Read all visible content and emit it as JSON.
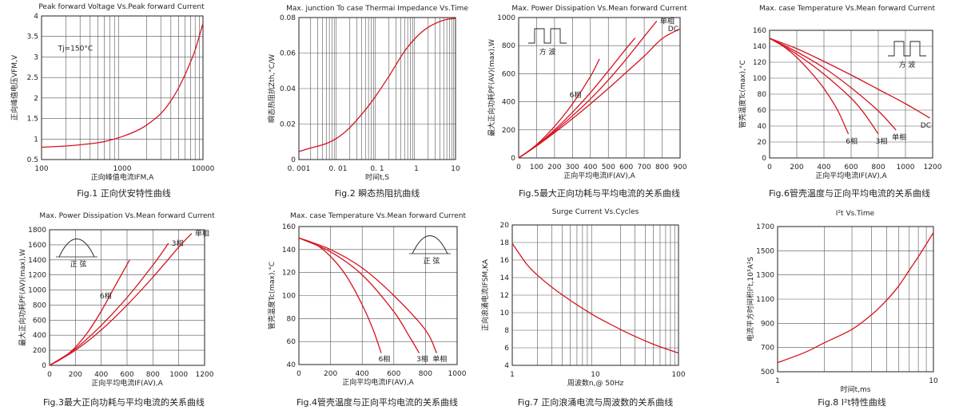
{
  "colors": {
    "curve": "#d6131f",
    "axis": "#222222",
    "grid": "#555555"
  },
  "chart_data": [
    {
      "type": "line",
      "title": "Peak forward Voltage Vs.Peak forward Current",
      "caption": "Fig.1 正向伏安特性曲线",
      "xlabel": "正向峰值电流IFM,A",
      "ylabel": "正向峰值电压VFM,V",
      "xscale": "log",
      "xlim": [
        100,
        10000
      ],
      "xticks": [
        100,
        1000,
        10000
      ],
      "xtick_labels": [
        "100",
        "1000",
        "10000"
      ],
      "ylim": [
        0.5,
        4
      ],
      "yticks": [
        0.5,
        1,
        1.5,
        2,
        2.5,
        3,
        3.5,
        4
      ],
      "ytick_labels": [
        "0.5",
        "1",
        "1.5",
        "2",
        "2.5",
        "3",
        "3.5",
        "4"
      ],
      "grid": "log-vertical",
      "annotations": [
        {
          "text": "Tj=150°C",
          "x": 160,
          "y": 3.15
        }
      ],
      "series": [
        {
          "name": "",
          "x": [
            100,
            200,
            300,
            500,
            700,
            1000,
            1500,
            2000,
            3000,
            4000,
            5000,
            6000,
            7000,
            8000,
            10000
          ],
          "y": [
            0.8,
            0.83,
            0.86,
            0.91,
            0.97,
            1.06,
            1.2,
            1.34,
            1.62,
            1.93,
            2.25,
            2.57,
            2.88,
            3.17,
            3.82
          ],
          "label": ""
        }
      ]
    },
    {
      "type": "line",
      "title": "Max. junction To case Thermai Impedance Vs.Time",
      "caption": "Fig.2 瞬态热阻抗曲线",
      "xlabel": "时间t,S",
      "ylabel": "瞬态热阻抗Zth,°C/W",
      "xscale": "log",
      "xlim": [
        0.001,
        10
      ],
      "xticks": [
        0.001,
        0.01,
        0.1,
        1,
        10
      ],
      "xtick_labels": [
        "0. 001",
        "0. 01",
        "0. 1",
        "1",
        "10"
      ],
      "ylim": [
        0,
        0.08
      ],
      "yticks": [
        0,
        0.02,
        0.04,
        0.06,
        0.08
      ],
      "ytick_labels": [
        "0",
        "0.02",
        "0.04",
        "0.06",
        "0.08"
      ],
      "grid": "log-vertical",
      "annotations": [],
      "series": [
        {
          "name": "",
          "x": [
            0.001,
            0.002,
            0.005,
            0.01,
            0.02,
            0.05,
            0.1,
            0.2,
            0.5,
            1,
            2,
            5,
            10
          ],
          "y": [
            0.0045,
            0.0065,
            0.009,
            0.0125,
            0.018,
            0.028,
            0.037,
            0.047,
            0.061,
            0.069,
            0.0745,
            0.0785,
            0.0795
          ],
          "label": ""
        }
      ]
    },
    {
      "type": "line",
      "title": "Max. Power Dissipation Vs.Mean forward Current",
      "caption": "Fig.5最大正向功耗与平均电流的关系曲线",
      "xlabel": "正向平均电流IF(AV),A",
      "ylabel": "最大正向功耗PF(AV)(max),W",
      "xscale": "linear",
      "xlim": [
        0,
        900
      ],
      "xticks": [
        0,
        100,
        200,
        300,
        400,
        500,
        600,
        700,
        800,
        900
      ],
      "xtick_labels": [
        "0",
        "100",
        "200",
        "300",
        "400",
        "500",
        "600",
        "700",
        "800",
        "900"
      ],
      "ylim": [
        0,
        1000
      ],
      "yticks": [
        0,
        200,
        400,
        600,
        800,
        1000
      ],
      "ytick_labels": [
        "0",
        "200",
        "400",
        "600",
        "800",
        "1000"
      ],
      "grid": "both",
      "inset": {
        "kind": "square",
        "text": "方 波"
      },
      "annotations": [],
      "series": [
        {
          "name": "6相",
          "x": [
            0,
            100,
            200,
            300,
            400,
            450
          ],
          "y": [
            0,
            95,
            225,
            385,
            580,
            705
          ],
          "label": "6相"
        },
        {
          "name": "3相",
          "x": [
            0,
            100,
            200,
            300,
            400,
            500,
            600,
            650
          ],
          "y": [
            0,
            90,
            200,
            325,
            465,
            620,
            780,
            855
          ],
          "label": ""
        },
        {
          "name": "单相",
          "x": [
            0,
            100,
            200,
            300,
            400,
            500,
            600,
            700,
            770
          ],
          "y": [
            0,
            88,
            190,
            300,
            420,
            555,
            705,
            865,
            975
          ],
          "label": "单相"
        },
        {
          "name": "DC",
          "x": [
            0,
            100,
            200,
            300,
            400,
            500,
            600,
            700,
            800,
            900
          ],
          "y": [
            0,
            85,
            180,
            280,
            385,
            495,
            610,
            725,
            850,
            920
          ],
          "label": "DC"
        }
      ]
    },
    {
      "type": "line",
      "title": "Max. case Temperature Vs.Mean forward Current",
      "caption": "Fig.6管壳温度与正向平均电流的关系曲线",
      "xlabel": "正向平均电流IF(AV),A",
      "ylabel": "管壳温度Tc(max),°C",
      "xscale": "linear",
      "xlim": [
        0,
        1200
      ],
      "xticks": [
        0,
        200,
        400,
        600,
        800,
        1000,
        1200
      ],
      "xtick_labels": [
        "0",
        "200",
        "400",
        "600",
        "800",
        "1000",
        "1200"
      ],
      "ylim": [
        0,
        160
      ],
      "yticks": [
        0,
        20,
        40,
        60,
        80,
        100,
        120,
        140,
        160
      ],
      "ytick_labels": [
        "0",
        "20",
        "40",
        "60",
        "80",
        "100",
        "120",
        "140",
        "160"
      ],
      "grid": "both",
      "inset": {
        "kind": "square",
        "text": "方 波"
      },
      "annotations": [],
      "series": [
        {
          "name": "6相",
          "x": [
            0,
            100,
            200,
            300,
            400,
            500,
            580
          ],
          "y": [
            150,
            140,
            126,
            108,
            87,
            60,
            30
          ],
          "label": "6相"
        },
        {
          "name": "3相",
          "x": [
            0,
            200,
            400,
            600,
            700,
            800
          ],
          "y": [
            150,
            130,
            105,
            75,
            55,
            30
          ],
          "label": "3相"
        },
        {
          "name": "单相",
          "x": [
            0,
            200,
            400,
            600,
            800,
            930
          ],
          "y": [
            150,
            133,
            113,
            88,
            59,
            35
          ],
          "label": "单相"
        },
        {
          "name": "DC",
          "x": [
            0,
            200,
            400,
            600,
            800,
            1000,
            1180
          ],
          "y": [
            150,
            137,
            121,
            104,
            86,
            68,
            50
          ],
          "label": "DC"
        }
      ]
    },
    {
      "type": "line",
      "title": "Max. Power Dissipation Vs.Mean forward Current",
      "caption": "Fig.3最大正向功耗与平均电流的关系曲线",
      "xlabel": "正向平均电流IF(AV),A",
      "ylabel": "最大正向功耗PF(AV)(max),W",
      "xscale": "linear",
      "xlim": [
        0,
        1200
      ],
      "xticks": [
        0,
        200,
        400,
        600,
        800,
        1000,
        1200
      ],
      "xtick_labels": [
        "0",
        "200",
        "400",
        "600",
        "800",
        "1000",
        "1200"
      ],
      "ylim": [
        0,
        1800
      ],
      "yticks": [
        0,
        200,
        400,
        600,
        800,
        1000,
        1200,
        1400,
        1600,
        1800
      ],
      "ytick_labels": [
        "0",
        "200",
        "400",
        "600",
        "800",
        "1000",
        "1200",
        "1400",
        "1600",
        "1800"
      ],
      "grid": "both",
      "inset": {
        "kind": "sine",
        "text": "正 弦"
      },
      "annotations": [],
      "series": [
        {
          "name": "6相",
          "x": [
            0,
            100,
            200,
            300,
            400,
            500,
            620
          ],
          "y": [
            0,
            95,
            240,
            450,
            720,
            1030,
            1400
          ],
          "label": "6相"
        },
        {
          "name": "3相",
          "x": [
            0,
            200,
            400,
            600,
            800,
            920
          ],
          "y": [
            0,
            220,
            530,
            900,
            1330,
            1620
          ],
          "label": "3相"
        },
        {
          "name": "单相",
          "x": [
            0,
            200,
            400,
            600,
            800,
            1000,
            1100
          ],
          "y": [
            0,
            200,
            470,
            800,
            1170,
            1570,
            1750
          ],
          "label": "单相"
        }
      ]
    },
    {
      "type": "line",
      "title": "Max. case Temperature Vs.Mean forward Current",
      "caption": "Fig.4管壳温度与正向平均电流的关系曲线",
      "xlabel": "正向平均电流IF(AV),A",
      "ylabel": "管壳温度Tc(max),°C",
      "xscale": "linear",
      "xlim": [
        0,
        1000
      ],
      "xticks": [
        0,
        200,
        400,
        600,
        800,
        1000
      ],
      "xtick_labels": [
        "0",
        "200",
        "400",
        "600",
        "800",
        "1000"
      ],
      "ylim": [
        40,
        160
      ],
      "yticks": [
        40,
        60,
        80,
        100,
        120,
        140,
        160
      ],
      "ytick_labels": [
        "40",
        "60",
        "80",
        "100",
        "120",
        "140",
        "160"
      ],
      "grid": "both",
      "inset": {
        "kind": "sine",
        "text": "正 弦"
      },
      "annotations": [],
      "series": [
        {
          "name": "6相",
          "x": [
            0,
            100,
            200,
            300,
            400,
            470,
            520
          ],
          "y": [
            150,
            145,
            134,
            117,
            92,
            70,
            50
          ],
          "label": "6相"
        },
        {
          "name": "3相",
          "x": [
            0,
            200,
            400,
            600,
            700,
            760
          ],
          "y": [
            150,
            138,
            118,
            86,
            64,
            50
          ],
          "label": "3相"
        },
        {
          "name": "单相",
          "x": [
            0,
            200,
            400,
            600,
            800,
            870
          ],
          "y": [
            150,
            140,
            124,
            100,
            70,
            50
          ],
          "label": "单相"
        }
      ]
    },
    {
      "type": "line",
      "title": "Surge Current Vs.Cycles",
      "caption": "Fig.7 正向浪涌电流与周波数的关系曲线",
      "xlabel": "周波数n,@ 50Hz",
      "ylabel": "正向浪涌电流IFSM,KA",
      "xscale": "log",
      "xlim": [
        1,
        100
      ],
      "xticks": [
        1,
        10,
        100
      ],
      "xtick_labels": [
        "1",
        "10",
        "100"
      ],
      "ylim": [
        4,
        20
      ],
      "yticks": [
        4,
        6,
        8,
        10,
        12,
        14,
        16,
        18,
        20
      ],
      "ytick_labels": [
        "4",
        "6",
        "8",
        "10",
        "12",
        "14",
        "16",
        "18",
        "20"
      ],
      "grid": "log-vertical",
      "annotations": [],
      "series": [
        {
          "name": "",
          "x": [
            1,
            1.5,
            2,
            3,
            5,
            7,
            10,
            20,
            30,
            50,
            70,
            100
          ],
          "y": [
            17.9,
            15.5,
            14.3,
            12.9,
            11.4,
            10.5,
            9.6,
            8.1,
            7.3,
            6.4,
            5.9,
            5.4
          ],
          "label": ""
        }
      ]
    },
    {
      "type": "line",
      "title": "I²t Vs.Time",
      "caption": "Fig.8 I²t特性曲线",
      "xlabel": "时间t,ms",
      "ylabel": "电流平方时间积I²t,10³A²S",
      "xscale": "log",
      "xlim": [
        1,
        10
      ],
      "xticks": [
        1,
        10
      ],
      "xtick_labels": [
        "1",
        "10"
      ],
      "ylim": [
        500,
        1700
      ],
      "yticks": [
        500,
        700,
        900,
        1100,
        1300,
        1500,
        1700
      ],
      "ytick_labels": [
        "500",
        "700",
        "900",
        "1100",
        "1300",
        "1500",
        "1700"
      ],
      "grid": "log-vertical",
      "annotations": [],
      "series": [
        {
          "name": "",
          "x": [
            1,
            1.5,
            2,
            3,
            4,
            5,
            6,
            7,
            8,
            10
          ],
          "y": [
            575,
            660,
            740,
            850,
            970,
            1090,
            1210,
            1340,
            1450,
            1650
          ],
          "label": ""
        }
      ]
    }
  ]
}
